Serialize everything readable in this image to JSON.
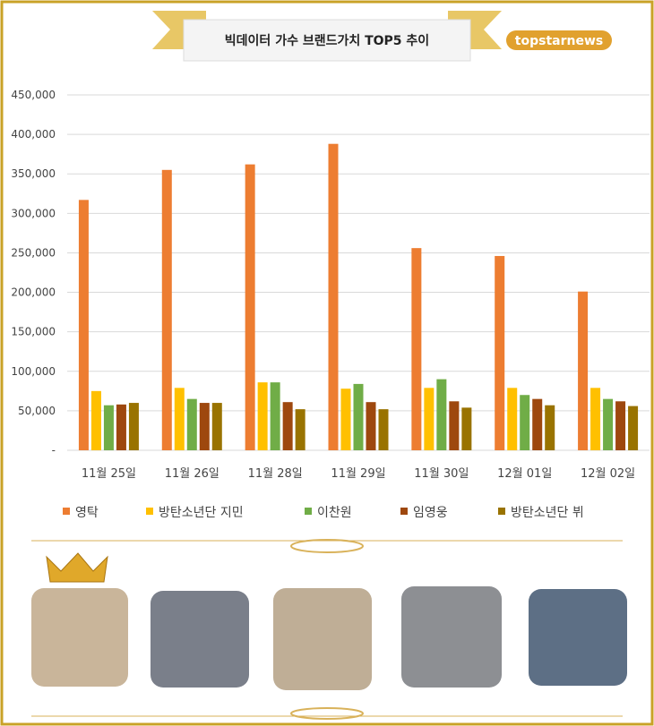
{
  "chart_data": {
    "type": "bar",
    "title": "빅데이터 가수 브랜드가치 TOP5 추이",
    "logo": "topstarnews",
    "categories": [
      "11월 25일",
      "11월 26일",
      "11월 28일",
      "11월 29일",
      "11월 30일",
      "12월 01일",
      "12월 02일"
    ],
    "series": [
      {
        "name": "영탁",
        "color": "#ed7d31",
        "values": [
          317000,
          355000,
          362000,
          388000,
          256000,
          246000,
          201000
        ]
      },
      {
        "name": "방탄소년단 지민",
        "color": "#ffc000",
        "values": [
          75000,
          79000,
          86000,
          78000,
          79000,
          79000,
          79000
        ]
      },
      {
        "name": "이찬원",
        "color": "#70ad47",
        "values": [
          57000,
          65000,
          86000,
          84000,
          90000,
          70000,
          65000
        ]
      },
      {
        "name": "임영웅",
        "color": "#9e480e",
        "values": [
          58000,
          60000,
          61000,
          61000,
          62000,
          65000,
          62000
        ]
      },
      {
        "name": "방탄소년단 뷔",
        "color": "#997300",
        "values": [
          60000,
          60000,
          52000,
          52000,
          54000,
          57000,
          56000
        ]
      }
    ],
    "ylim": [
      0,
      450000
    ],
    "yticks": [
      {
        "value": 0,
        "label": "-"
      },
      {
        "value": 50000,
        "label": "50,000"
      },
      {
        "value": 100000,
        "label": "100,000"
      },
      {
        "value": 150000,
        "label": "150,000"
      },
      {
        "value": 200000,
        "label": "200,000"
      },
      {
        "value": 250000,
        "label": "250,000"
      },
      {
        "value": 300000,
        "label": "300,000"
      },
      {
        "value": 350000,
        "label": "350,000"
      },
      {
        "value": 400000,
        "label": "400,000"
      },
      {
        "value": 450000,
        "label": "450,000"
      }
    ],
    "grid": true
  }
}
